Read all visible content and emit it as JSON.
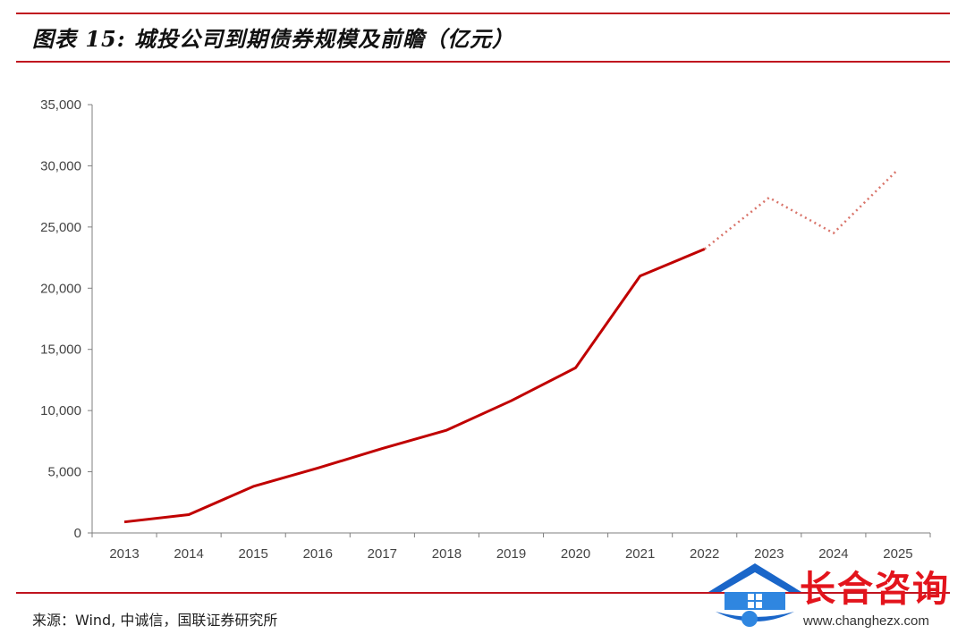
{
  "header": {
    "title": "图表 15: 城投公司到期债券规模及前瞻（亿元）"
  },
  "source": "来源：Wind, 中诚信，国联证券研究所",
  "logo": {
    "name": "长合咨询",
    "url": "www.changhezx.com"
  },
  "colors": {
    "rule": "#c0141f",
    "actual_line": "#c00000",
    "forecast_line": "#d9746a",
    "axis": "#7f7f7f"
  },
  "chart_data": {
    "type": "line",
    "categories": [
      "2013",
      "2014",
      "2015",
      "2016",
      "2017",
      "2018",
      "2019",
      "2020",
      "2021",
      "2022",
      "2023",
      "2024",
      "2025"
    ],
    "y_ticks": [
      "0",
      "5,000",
      "10,000",
      "15,000",
      "20,000",
      "25,000",
      "30,000",
      "35,000"
    ],
    "ylim": [
      0,
      35000
    ],
    "series": [
      {
        "style": "solid",
        "x": [
          "2013",
          "2014",
          "2015",
          "2016",
          "2017",
          "2018",
          "2019",
          "2020",
          "2021",
          "2022"
        ],
        "values": [
          900,
          1500,
          3800,
          5300,
          6900,
          8400,
          10800,
          13500,
          21000,
          23200
        ]
      },
      {
        "style": "dotted",
        "x": [
          "2022",
          "2023",
          "2024",
          "2025"
        ],
        "values": [
          23200,
          27400,
          24500,
          29700
        ]
      }
    ],
    "grid": false,
    "legend": "none"
  }
}
